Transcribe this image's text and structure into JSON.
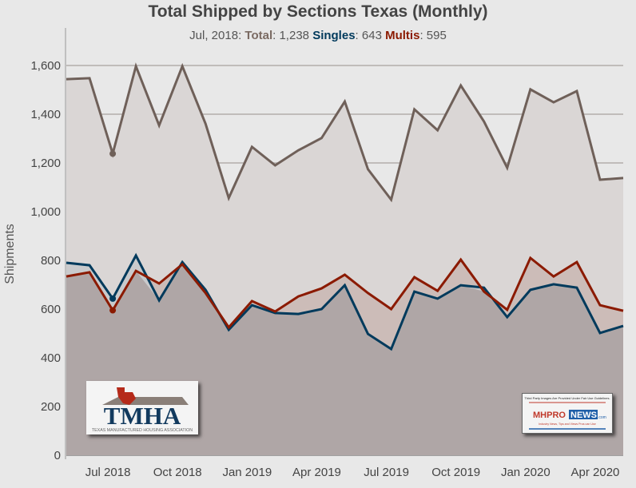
{
  "chart_data": {
    "type": "area",
    "title": "Total Shipped by Sections Texas (Monthly)",
    "tooltip": {
      "date": "Jul, 2018",
      "total_label": "Total",
      "total": "1,238",
      "singles_label": "Singles",
      "singles": "643",
      "multis_label": "Multis",
      "multis": "595"
    },
    "ylabel": "Shipments",
    "ylim": [
      0,
      1750
    ],
    "yticks": [
      "0",
      "200",
      "400",
      "600",
      "800",
      "1,000",
      "1,200",
      "1,400",
      "1,600"
    ],
    "ytick_values": [
      0,
      200,
      400,
      600,
      800,
      1000,
      1200,
      1400,
      1600
    ],
    "x": [
      "May 2018",
      "Jun 2018",
      "Jul 2018",
      "Aug 2018",
      "Sep 2018",
      "Oct 2018",
      "Nov 2018",
      "Dec 2018",
      "Jan 2019",
      "Feb 2019",
      "Mar 2019",
      "Apr 2019",
      "May 2019",
      "Jun 2019",
      "Jul 2019",
      "Aug 2019",
      "Sep 2019",
      "Oct 2019",
      "Nov 2019",
      "Dec 2019",
      "Jan 2020",
      "Feb 2020",
      "Mar 2020",
      "Apr 2020",
      "May 2020"
    ],
    "xticks": [
      {
        "label": "Jul 2018",
        "index": 2
      },
      {
        "label": "Oct 2018",
        "index": 5
      },
      {
        "label": "Jan 2019",
        "index": 8
      },
      {
        "label": "Apr 2019",
        "index": 11
      },
      {
        "label": "Jul 2019",
        "index": 14
      },
      {
        "label": "Oct 2019",
        "index": 17
      },
      {
        "label": "Jan 2020",
        "index": 20
      },
      {
        "label": "Apr 2020",
        "index": 23
      }
    ],
    "highlight_index": 2,
    "grid": true,
    "series": [
      {
        "name": "Total",
        "color": "#6f6059",
        "fill": "#dad6d5",
        "values": [
          1544,
          1548,
          1238,
          1597,
          1354,
          1597,
          1361,
          1056,
          1266,
          1190,
          1252,
          1302,
          1452,
          1174,
          1049,
          1420,
          1334,
          1518,
          1370,
          1180,
          1502,
          1449,
          1495,
          1131,
          1138
        ]
      },
      {
        "name": "Singles",
        "color": "#003a5c",
        "fill": "#c9cacc",
        "values": [
          790,
          780,
          643,
          820,
          636,
          793,
          679,
          515,
          616,
          584,
          580,
          600,
          698,
          498,
          436,
          672,
          643,
          698,
          688,
          567,
          679,
          702,
          688,
          502,
          531
        ]
      },
      {
        "name": "Multis",
        "color": "#8b1a00",
        "fill": "#ccbcb8",
        "values": [
          734,
          751,
          595,
          757,
          705,
          784,
          666,
          525,
          633,
          590,
          652,
          685,
          741,
          666,
          600,
          731,
          675,
          803,
          672,
          597,
          810,
          734,
          793,
          616,
          593
        ]
      }
    ]
  },
  "logos": {
    "tmha": {
      "name": "TMHA",
      "tagline": "TEXAS MANUFACTURED HOUSING ASSOCIATION"
    },
    "mhpronews": {
      "notice": "Third Party Images Are Provided Under Fair Use Guidelines.",
      "brand_a": "MHPRO",
      "brand_b": "NEWS",
      "suffix": ".com",
      "tagline": "Industry News, Tips and Views Pros can Use"
    }
  }
}
